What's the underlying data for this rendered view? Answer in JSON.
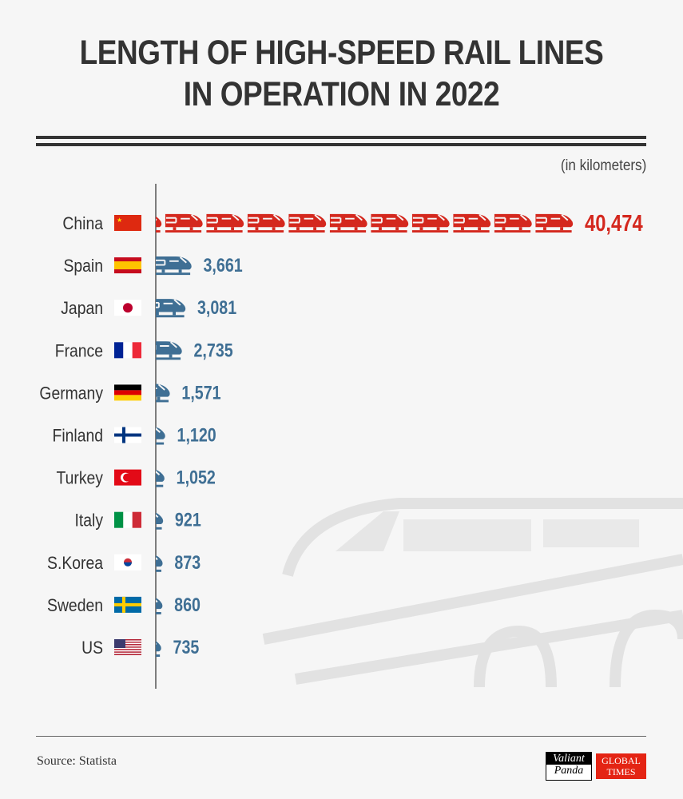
{
  "title_lines": [
    "LENGTH OF HIGH-SPEED RAIL LINES",
    "IN OPERATION IN 2022"
  ],
  "unit_note": "(in kilometers)",
  "source": "Source: Statista",
  "logos": {
    "valiant_panda": [
      "Valiant",
      "Panda"
    ],
    "global_times": [
      "GLOBAL",
      "TIMES"
    ]
  },
  "colors": {
    "highlight": "#d4281e",
    "bar": "#3f6f94",
    "label": "#333333"
  },
  "chart_data": {
    "type": "bar",
    "orientation": "horizontal",
    "mark": "train-pictogram",
    "categories": [
      "China",
      "Spain",
      "Japan",
      "France",
      "Germany",
      "Finland",
      "Turkey",
      "Italy",
      "S.Korea",
      "Sweden",
      "US"
    ],
    "values": [
      40474,
      3661,
      3081,
      2735,
      1571,
      1120,
      1052,
      921,
      873,
      860,
      735
    ],
    "value_labels": [
      "40,474",
      "3,661",
      "3,081",
      "2,735",
      "1,571",
      "1,120",
      "1,052",
      "921",
      "873",
      "860",
      "735"
    ],
    "flags": [
      "china-flag",
      "spain-flag",
      "japan-flag",
      "france-flag",
      "germany-flag",
      "finland-flag",
      "turkey-flag",
      "italy-flag",
      "south-korea-flag",
      "sweden-flag",
      "us-flag"
    ],
    "highlighted": "China",
    "grid": false,
    "legend": "none"
  }
}
